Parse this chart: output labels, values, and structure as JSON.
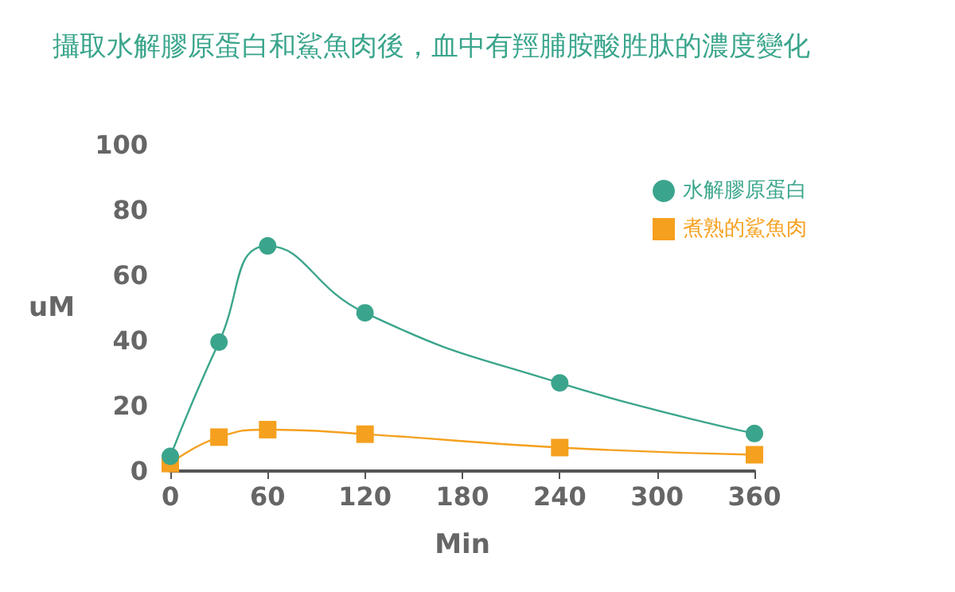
{
  "chart_data": {
    "type": "line",
    "title": "攝取水解膠原蛋白和鯊魚肉後，血中有羥脯胺酸胜肽的濃度變化",
    "xlabel": "Min",
    "ylabel": "uM",
    "x": [
      0,
      30,
      60,
      120,
      240,
      360
    ],
    "xlim": [
      0,
      360
    ],
    "xticks": [
      0,
      60,
      120,
      180,
      240,
      300,
      360
    ],
    "ylim": [
      0,
      100
    ],
    "yticks": [
      0,
      20,
      40,
      60,
      80,
      100
    ],
    "grid": false,
    "legend": "top right",
    "series": [
      {
        "name": "水解膠原蛋白",
        "color": "#3aa58c",
        "marker": "circle",
        "values": [
          4.5,
          39.5,
          69,
          48.5,
          27,
          11.5
        ]
      },
      {
        "name": "煮熟的鯊魚肉",
        "color": "#f5a01e",
        "marker": "square",
        "values": [
          2.3,
          10.4,
          12.7,
          11.3,
          7.2,
          5
        ]
      }
    ]
  }
}
